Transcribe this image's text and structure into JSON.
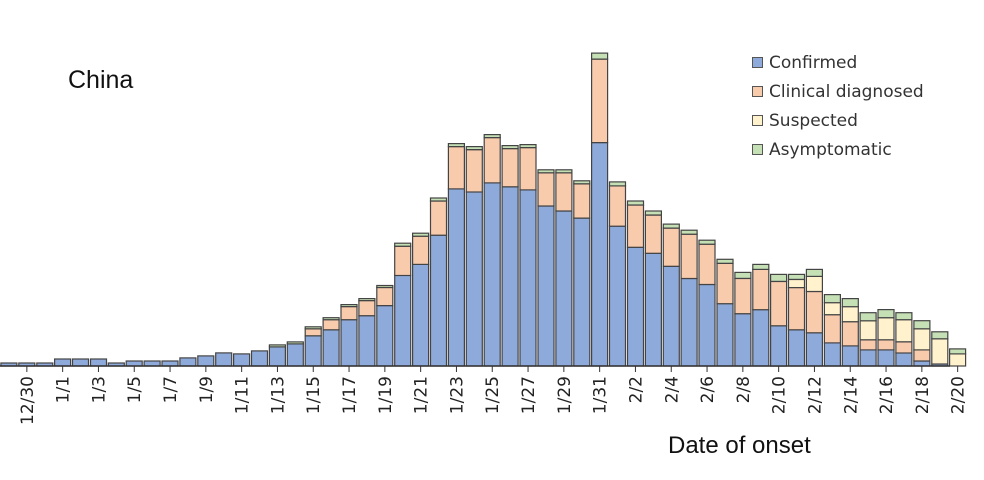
{
  "chart_data": {
    "type": "bar",
    "stacked": true,
    "region": "China",
    "xlabel": "Date of onset",
    "ylabel": "",
    "legend_position": "top-right",
    "grid": false,
    "tick_labels": [
      "12/30",
      "1/1",
      "1/3",
      "1/5",
      "1/7",
      "1/9",
      "1/11",
      "1/13",
      "1/15",
      "1/17",
      "1/19",
      "1/21",
      "1/23",
      "1/25",
      "1/27",
      "1/29",
      "1/31",
      "2/2",
      "2/4",
      "2/6",
      "2/8",
      "2/10",
      "2/12",
      "2/14",
      "2/16",
      "2/18",
      "2/20"
    ],
    "categories": [
      "12/29",
      "12/30",
      "12/31",
      "1/1",
      "1/2",
      "1/3",
      "1/4",
      "1/5",
      "1/6",
      "1/7",
      "1/8",
      "1/9",
      "1/10",
      "1/11",
      "1/12",
      "1/13",
      "1/14",
      "1/15",
      "1/16",
      "1/17",
      "1/18",
      "1/19",
      "1/20",
      "1/21",
      "1/22",
      "1/23",
      "1/24",
      "1/25",
      "1/26",
      "1/27",
      "1/28",
      "1/29",
      "1/30",
      "1/31",
      "2/1",
      "2/2",
      "2/3",
      "2/4",
      "2/5",
      "2/6",
      "2/7",
      "2/8",
      "2/9",
      "2/10",
      "2/11",
      "2/12",
      "2/13",
      "2/14",
      "2/15",
      "2/16",
      "2/17",
      "2/18",
      "2/19",
      "2/20"
    ],
    "ylim": [
      0,
      320
    ],
    "series": [
      {
        "name": "Confirmed",
        "color": "#8eaadb",
        "values": [
          3,
          3,
          3,
          7,
          7,
          7,
          3,
          5,
          5,
          5,
          8,
          10,
          13,
          12,
          15,
          19,
          22,
          30,
          36,
          46,
          50,
          60,
          90,
          101,
          130,
          176,
          173,
          182,
          178,
          175,
          159,
          154,
          147,
          222,
          139,
          118,
          112,
          99,
          87,
          81,
          62,
          52,
          56,
          40,
          36,
          33,
          23,
          20,
          16,
          16,
          13,
          5,
          2,
          0
        ]
      },
      {
        "name": "Clinical diagnosed",
        "color": "#f8cbad",
        "values": [
          0,
          0,
          0,
          0,
          0,
          0,
          0,
          0,
          0,
          0,
          0,
          0,
          0,
          0,
          0,
          0,
          0,
          7,
          10,
          13,
          15,
          18,
          29,
          28,
          34,
          42,
          42,
          45,
          38,
          42,
          33,
          38,
          34,
          83,
          40,
          42,
          38,
          38,
          44,
          40,
          40,
          35,
          40,
          44,
          42,
          41,
          28,
          24,
          10,
          10,
          11,
          11,
          0,
          0
        ]
      },
      {
        "name": "Suspected",
        "color": "#fff2cc",
        "values": [
          0,
          0,
          0,
          0,
          0,
          0,
          0,
          0,
          0,
          0,
          0,
          0,
          0,
          0,
          0,
          0,
          0,
          0,
          0,
          0,
          0,
          0,
          0,
          0,
          0,
          0,
          0,
          0,
          0,
          0,
          0,
          0,
          0,
          0,
          0,
          0,
          0,
          0,
          0,
          0,
          0,
          0,
          0,
          0,
          8,
          15,
          12,
          15,
          19,
          22,
          22,
          21,
          25,
          12
        ]
      },
      {
        "name": "Asymptomatic",
        "color": "#c5e0b4",
        "values": [
          0,
          0,
          0,
          0,
          0,
          0,
          0,
          0,
          0,
          0,
          0,
          0,
          0,
          0,
          0,
          2,
          2,
          2,
          2,
          2,
          2,
          2,
          3,
          3,
          3,
          3,
          3,
          3,
          3,
          3,
          3,
          3,
          3,
          6,
          4,
          4,
          4,
          4,
          4,
          4,
          4,
          6,
          5,
          7,
          5,
          7,
          8,
          8,
          8,
          8,
          7,
          8,
          7,
          5
        ]
      }
    ]
  }
}
